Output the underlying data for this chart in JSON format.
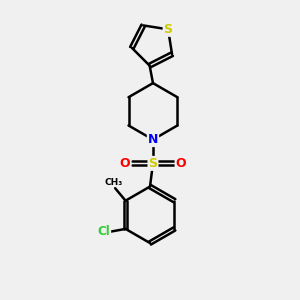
{
  "bg_color": "#f0f0f0",
  "bond_color": "#000000",
  "bond_width": 1.8,
  "s_color": "#cccc00",
  "n_color": "#0000ff",
  "o_color": "#ff0000",
  "cl_color": "#33cc33",
  "text_color": "#000000",
  "figsize": [
    3.0,
    3.0
  ],
  "dpi": 100,
  "xlim": [
    0,
    10
  ],
  "ylim": [
    0,
    10
  ]
}
